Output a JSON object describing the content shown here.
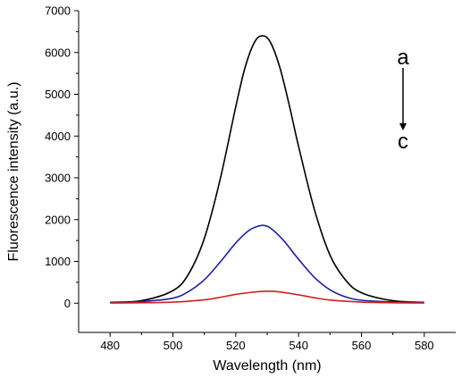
{
  "chart_data": {
    "type": "line",
    "xlabel": "Wavelength (nm)",
    "ylabel": "Fluorescence intensity (a.u.)",
    "xlim": [
      470,
      590
    ],
    "ylim": [
      -700,
      7000
    ],
    "x_ticks": [
      480,
      500,
      520,
      540,
      560,
      580
    ],
    "y_ticks": [
      0,
      1000,
      2000,
      3000,
      4000,
      5000,
      6000,
      7000
    ],
    "grid": false,
    "series": [
      {
        "color": "#000000",
        "x": [
          480,
          490,
          500,
          505,
          510,
          515,
          520,
          523,
          526,
          528.5,
          531,
          534,
          537,
          540,
          545,
          550,
          555,
          560,
          570,
          580
        ],
        "y": [
          20,
          60,
          300,
          700,
          1550,
          2950,
          4700,
          5650,
          6250,
          6400,
          6250,
          5650,
          4750,
          3750,
          2250,
          1150,
          550,
          250,
          60,
          20
        ]
      },
      {
        "color": "#1f1f9e",
        "x": [
          480,
          490,
          500,
          505,
          510,
          515,
          520,
          524,
          527,
          529,
          531,
          535,
          540,
          545,
          550,
          555,
          560,
          570,
          580
        ],
        "y": [
          20,
          40,
          120,
          280,
          560,
          980,
          1440,
          1730,
          1840,
          1860,
          1800,
          1520,
          1050,
          620,
          320,
          150,
          70,
          30,
          15
        ]
      },
      {
        "color": "#cc2222",
        "x": [
          480,
          490,
          500,
          510,
          515,
          520,
          525,
          528,
          531,
          534,
          540,
          545,
          550,
          560,
          570,
          580
        ],
        "y": [
          5,
          10,
          25,
          80,
          140,
          210,
          260,
          280,
          285,
          270,
          200,
          130,
          75,
          25,
          10,
          5
        ]
      }
    ],
    "annotations": {
      "top": "a",
      "bottom": "c"
    }
  }
}
